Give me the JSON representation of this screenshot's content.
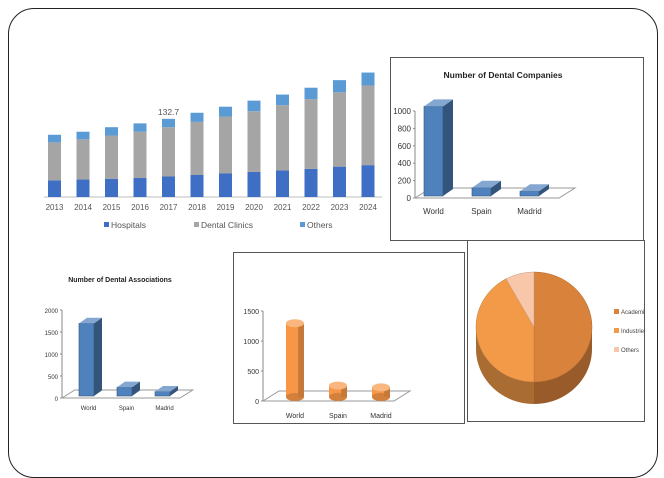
{
  "chart_data": [
    {
      "type": "bar",
      "stacked": true,
      "categories": [
        "2013",
        "2014",
        "2015",
        "2016",
        "2017",
        "2018",
        "2019",
        "2020",
        "2021",
        "2022",
        "2023",
        "2024"
      ],
      "series": [
        {
          "name": "Hospitals",
          "color": "#3e6fc4",
          "values": [
            22,
            23,
            24,
            25,
            27,
            29,
            31,
            33,
            35,
            37,
            40,
            42
          ]
        },
        {
          "name": "Dental Clinics",
          "color": "#a5a5a5",
          "values": [
            50,
            53,
            57,
            61,
            65,
            70,
            75,
            80,
            86,
            92,
            98,
            105
          ]
        },
        {
          "name": "Others",
          "color": "#5b9bd5",
          "values": [
            10,
            10,
            11,
            11,
            11,
            12,
            13,
            14,
            14,
            15,
            16,
            17
          ]
        }
      ],
      "annotation": {
        "category": "2017",
        "text": "132.7"
      },
      "ylim": [
        0,
        170
      ],
      "legend": "bottom"
    },
    {
      "type": "bar",
      "style": "3d",
      "title": "Number of Dental Companies",
      "categories": [
        "World",
        "Spain",
        "Madrid"
      ],
      "values": [
        1030,
        95,
        55
      ],
      "yticks": [
        "0",
        "200",
        "400",
        "600",
        "800",
        "1000"
      ],
      "ylim": [
        0,
        1000
      ],
      "color": "#4f81bd"
    },
    {
      "type": "bar",
      "style": "3d",
      "title": "Number of Dental Associations",
      "categories": [
        "World",
        "Spain",
        "Madrid"
      ],
      "values": [
        1650,
        200,
        100
      ],
      "yticks": [
        "0",
        "500",
        "1000",
        "1500",
        "2000"
      ],
      "ylim": [
        0,
        2000
      ],
      "color": "#4f81bd"
    },
    {
      "type": "bar",
      "style": "3d-cylinder",
      "categories": [
        "World",
        "Spain",
        "Madrid"
      ],
      "values": [
        1230,
        190,
        160
      ],
      "yticks": [
        "0",
        "500",
        "1000",
        "1500"
      ],
      "ylim": [
        0,
        1500
      ],
      "color": "#f79646"
    },
    {
      "type": "pie",
      "style": "3d",
      "labels": [
        "Academic",
        "Industries",
        "Others"
      ],
      "values": [
        50,
        42,
        8
      ],
      "colors": [
        "#d9823b",
        "#f29a48",
        "#f8c6a8"
      ],
      "legend": "right"
    }
  ]
}
